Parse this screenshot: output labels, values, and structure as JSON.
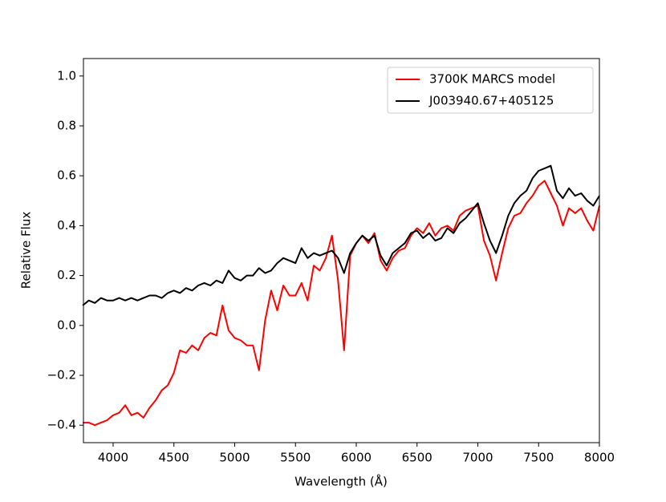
{
  "chart_data": {
    "type": "line",
    "xlabel": "Wavelength (Å)",
    "ylabel": "Relative Flux",
    "x": [
      3750,
      3800,
      3850,
      3900,
      3950,
      4000,
      4050,
      4100,
      4150,
      4200,
      4250,
      4300,
      4350,
      4400,
      4450,
      4500,
      4550,
      4600,
      4650,
      4700,
      4750,
      4800,
      4850,
      4900,
      4950,
      5000,
      5050,
      5100,
      5150,
      5200,
      5250,
      5300,
      5350,
      5400,
      5450,
      5500,
      5550,
      5600,
      5650,
      5700,
      5750,
      5800,
      5850,
      5900,
      5950,
      6000,
      6050,
      6100,
      6150,
      6200,
      6250,
      6300,
      6350,
      6400,
      6450,
      6500,
      6550,
      6600,
      6650,
      6700,
      6750,
      6800,
      6850,
      6900,
      6950,
      7000,
      7050,
      7100,
      7150,
      7200,
      7250,
      7300,
      7350,
      7400,
      7450,
      7500,
      7550,
      7600,
      7650,
      7700,
      7750,
      7800,
      7850,
      7900,
      7950,
      8000
    ],
    "series": [
      {
        "name": "3700K MARCS model",
        "color": "#ff0000",
        "values": [
          -0.39,
          -0.39,
          -0.4,
          -0.39,
          -0.38,
          -0.36,
          -0.35,
          -0.32,
          -0.36,
          -0.35,
          -0.37,
          -0.33,
          -0.3,
          -0.26,
          -0.24,
          -0.19,
          -0.1,
          -0.11,
          -0.08,
          -0.1,
          -0.05,
          -0.03,
          -0.04,
          0.08,
          -0.02,
          -0.05,
          -0.06,
          -0.08,
          -0.08,
          -0.18,
          0.02,
          0.14,
          0.06,
          0.16,
          0.12,
          0.12,
          0.17,
          0.1,
          0.24,
          0.22,
          0.27,
          0.36,
          0.18,
          -0.1,
          0.28,
          0.33,
          0.36,
          0.33,
          0.37,
          0.26,
          0.22,
          0.27,
          0.3,
          0.31,
          0.36,
          0.39,
          0.37,
          0.41,
          0.36,
          0.39,
          0.4,
          0.38,
          0.44,
          0.46,
          0.47,
          0.48,
          0.34,
          0.28,
          0.18,
          0.29,
          0.39,
          0.44,
          0.45,
          0.49,
          0.52,
          0.56,
          0.58,
          0.53,
          0.48,
          0.4,
          0.47,
          0.45,
          0.47,
          0.42,
          0.38,
          0.48
        ]
      },
      {
        "name": "J003940.67+405125",
        "color": "#000000",
        "values": [
          0.08,
          0.1,
          0.09,
          0.11,
          0.1,
          0.1,
          0.11,
          0.1,
          0.11,
          0.1,
          0.11,
          0.12,
          0.12,
          0.11,
          0.13,
          0.14,
          0.13,
          0.15,
          0.14,
          0.16,
          0.17,
          0.16,
          0.18,
          0.17,
          0.22,
          0.19,
          0.18,
          0.2,
          0.2,
          0.23,
          0.21,
          0.22,
          0.25,
          0.27,
          0.26,
          0.25,
          0.31,
          0.27,
          0.29,
          0.28,
          0.29,
          0.3,
          0.27,
          0.21,
          0.29,
          0.33,
          0.36,
          0.34,
          0.36,
          0.28,
          0.24,
          0.29,
          0.31,
          0.33,
          0.37,
          0.38,
          0.35,
          0.37,
          0.34,
          0.35,
          0.39,
          0.37,
          0.41,
          0.43,
          0.46,
          0.49,
          0.41,
          0.34,
          0.29,
          0.36,
          0.44,
          0.49,
          0.52,
          0.54,
          0.59,
          0.62,
          0.63,
          0.64,
          0.54,
          0.51,
          0.55,
          0.52,
          0.53,
          0.5,
          0.48,
          0.52
        ]
      }
    ],
    "xlim": [
      3756,
      8000
    ],
    "xticks": [
      4000,
      4500,
      5000,
      5500,
      6000,
      6500,
      7000,
      7500,
      8000
    ],
    "ylim": [
      -0.47,
      1.07
    ],
    "yticks": [
      {
        "value": -0.4,
        "label": "−0.4"
      },
      {
        "value": -0.2,
        "label": "−0.2"
      },
      {
        "value": 0,
        "label": "0.0"
      },
      0.2,
      0.4,
      0.6,
      0.8,
      {
        "value": 1,
        "label": "1.0"
      }
    ],
    "legend": "upper right"
  }
}
